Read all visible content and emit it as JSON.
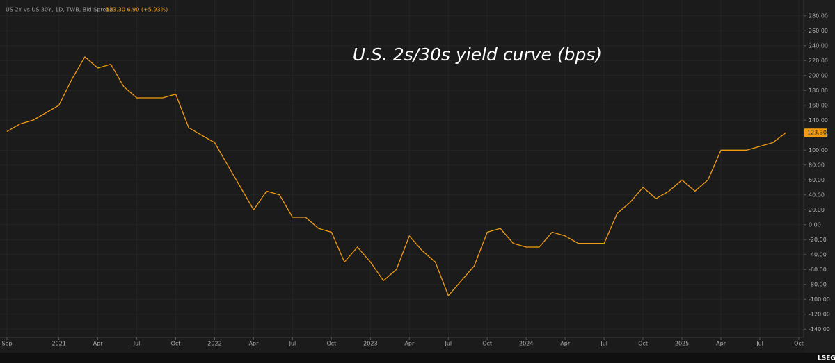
{
  "chart_data": {
    "type": "line",
    "title": "U.S. 2s/30s yield curve (bps)",
    "legend_text": "US 2Y vs US 30Y, 1D, TWB, Bid Spread",
    "header_values": "123.30 6.90 (+5.93%)",
    "price_label": "123.30",
    "brand": "LSEG",
    "x": [
      "2020-09",
      "2020-10",
      "2020-11",
      "2020-12",
      "2021-01",
      "2021-02",
      "2021-03",
      "2021-04",
      "2021-05",
      "2021-06",
      "2021-07",
      "2021-08",
      "2021-09",
      "2021-10",
      "2021-11",
      "2021-12",
      "2022-01",
      "2022-02",
      "2022-03",
      "2022-04",
      "2022-05",
      "2022-06",
      "2022-07",
      "2022-08",
      "2022-09",
      "2022-10",
      "2022-11",
      "2022-12",
      "2023-01",
      "2023-02",
      "2023-03",
      "2023-04",
      "2023-05",
      "2023-06",
      "2023-07",
      "2023-08",
      "2023-09",
      "2023-10",
      "2023-11",
      "2023-12",
      "2024-01",
      "2024-02",
      "2024-03",
      "2024-04",
      "2024-05",
      "2024-06",
      "2024-07",
      "2024-08",
      "2024-09",
      "2024-10",
      "2024-11",
      "2024-12",
      "2025-01",
      "2025-02",
      "2025-03",
      "2025-04",
      "2025-05",
      "2025-06",
      "2025-07",
      "2025-08",
      "2025-09"
    ],
    "series": [
      {
        "name": "US 2Y vs US 30Y",
        "color": "#f39c12",
        "values": [
          125,
          135,
          140,
          150,
          160,
          195,
          225,
          210,
          215,
          185,
          170,
          170,
          170,
          175,
          130,
          120,
          110,
          80,
          50,
          20,
          45,
          40,
          10,
          10,
          -5,
          -10,
          -50,
          -30,
          -50,
          -75,
          -60,
          -15,
          -35,
          -50,
          -95,
          -75,
          -55,
          -10,
          -5,
          -25,
          -30,
          -30,
          -10,
          -15,
          -25,
          -25,
          -25,
          15,
          30,
          50,
          35,
          45,
          60,
          45,
          60,
          100,
          100,
          100,
          105,
          110,
          123.3
        ]
      }
    ],
    "xlim": [
      "2020-09",
      "2025-10"
    ],
    "xticks": [
      {
        "value": "2020-09",
        "label": "Sep"
      },
      {
        "value": "2021-01",
        "label": "2021"
      },
      {
        "value": "2021-04",
        "label": "Apr"
      },
      {
        "value": "2021-07",
        "label": "Jul"
      },
      {
        "value": "2021-10",
        "label": "Oct"
      },
      {
        "value": "2022-01",
        "label": "2022"
      },
      {
        "value": "2022-04",
        "label": "Apr"
      },
      {
        "value": "2022-07",
        "label": "Jul"
      },
      {
        "value": "2022-10",
        "label": "Oct"
      },
      {
        "value": "2023-01",
        "label": "2023"
      },
      {
        "value": "2023-04",
        "label": "Apr"
      },
      {
        "value": "2023-07",
        "label": "Jul"
      },
      {
        "value": "2023-10",
        "label": "Oct"
      },
      {
        "value": "2024-01",
        "label": "2024"
      },
      {
        "value": "2024-04",
        "label": "Apr"
      },
      {
        "value": "2024-07",
        "label": "Jul"
      },
      {
        "value": "2024-10",
        "label": "Oct"
      },
      {
        "value": "2025-01",
        "label": "2025"
      },
      {
        "value": "2025-04",
        "label": "Apr"
      },
      {
        "value": "2025-07",
        "label": "Jul"
      },
      {
        "value": "2025-10",
        "label": "Oct"
      }
    ],
    "ylim": [
      -150,
      290
    ],
    "yticks": [
      {
        "value": 280,
        "label": "280.00"
      },
      {
        "value": 260,
        "label": "260.00"
      },
      {
        "value": 240,
        "label": "240.00"
      },
      {
        "value": 220,
        "label": "220.00"
      },
      {
        "value": 200,
        "label": "200.00"
      },
      {
        "value": 180,
        "label": "180.00"
      },
      {
        "value": 160,
        "label": "160.00"
      },
      {
        "value": 140,
        "label": "140.00"
      },
      {
        "value": 120,
        "label": "120.00"
      },
      {
        "value": 100,
        "label": "100.00"
      },
      {
        "value": 80,
        "label": "80.00"
      },
      {
        "value": 60,
        "label": "60.00"
      },
      {
        "value": 40,
        "label": "40.00"
      },
      {
        "value": 20,
        "label": "20.00"
      },
      {
        "value": 0,
        "label": "0.00"
      },
      {
        "value": -20,
        "label": "-20.00"
      },
      {
        "value": -40,
        "label": "-40.00"
      },
      {
        "value": -60,
        "label": "-60.00"
      },
      {
        "value": -80,
        "label": "-80.00"
      },
      {
        "value": -100,
        "label": "-100.00"
      },
      {
        "value": -120,
        "label": "-120.00"
      },
      {
        "value": -140,
        "label": "-140.00"
      }
    ],
    "grid": true
  }
}
